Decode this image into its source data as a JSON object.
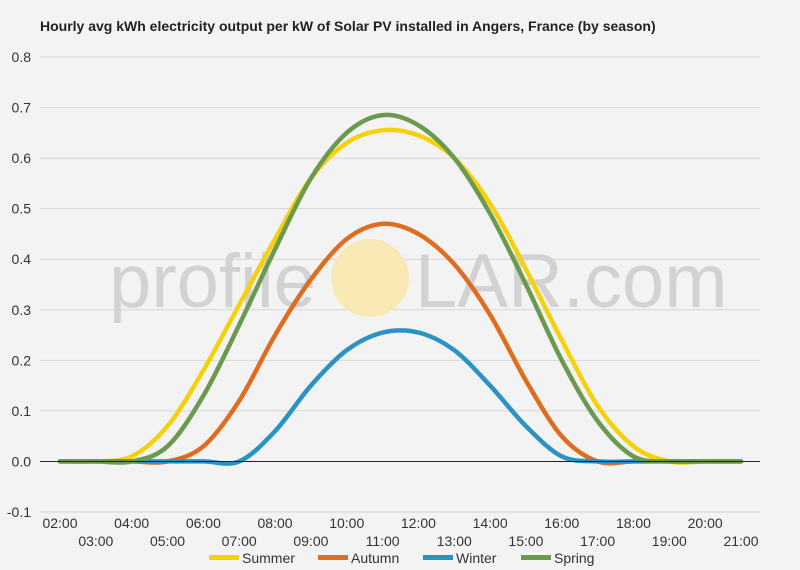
{
  "chart_data": {
    "type": "line",
    "title": "Hourly avg kWh electricity output per kW of Solar PV installed in Angers, France (by season)",
    "xlabel": "",
    "ylabel": "",
    "x": [
      "02:00",
      "03:00",
      "04:00",
      "05:00",
      "06:00",
      "07:00",
      "08:00",
      "09:00",
      "10:00",
      "11:00",
      "12:00",
      "13:00",
      "14:00",
      "15:00",
      "16:00",
      "17:00",
      "18:00",
      "19:00",
      "20:00",
      "21:00"
    ],
    "ylim": [
      -0.1,
      0.8
    ],
    "yticks": [
      "-0.1",
      "0.0",
      "0.1",
      "0.2",
      "0.3",
      "0.4",
      "0.5",
      "0.6",
      "0.7",
      "0.8"
    ],
    "grid": true,
    "legend_position": "bottom",
    "series": [
      {
        "name": "Summer",
        "color": "#f5d10c",
        "values": [
          0.0,
          0.0,
          0.01,
          0.07,
          0.18,
          0.31,
          0.44,
          0.56,
          0.63,
          0.655,
          0.645,
          0.6,
          0.51,
          0.38,
          0.24,
          0.11,
          0.03,
          0.0,
          0.0,
          0.0
        ]
      },
      {
        "name": "Autumn",
        "color": "#e06c1f",
        "values": [
          0.0,
          0.0,
          0.0,
          0.0,
          0.03,
          0.12,
          0.25,
          0.36,
          0.44,
          0.47,
          0.45,
          0.39,
          0.29,
          0.16,
          0.05,
          0.0,
          0.0,
          0.0,
          0.0,
          0.0
        ]
      },
      {
        "name": "Winter",
        "color": "#2a93c4",
        "values": [
          0.0,
          0.0,
          0.0,
          0.0,
          0.0,
          0.0,
          0.06,
          0.15,
          0.22,
          0.255,
          0.255,
          0.22,
          0.15,
          0.07,
          0.01,
          0.0,
          0.0,
          0.0,
          0.0,
          0.0
        ]
      },
      {
        "name": "Spring",
        "color": "#6b9a4f",
        "values": [
          0.0,
          0.0,
          0.0,
          0.03,
          0.13,
          0.27,
          0.42,
          0.56,
          0.65,
          0.685,
          0.665,
          0.6,
          0.49,
          0.35,
          0.2,
          0.08,
          0.01,
          0.0,
          0.0,
          0.0
        ]
      }
    ]
  },
  "watermark": {
    "left": "profile",
    "right": "LAR.com",
    "sun_color": "#f8e9b5"
  }
}
